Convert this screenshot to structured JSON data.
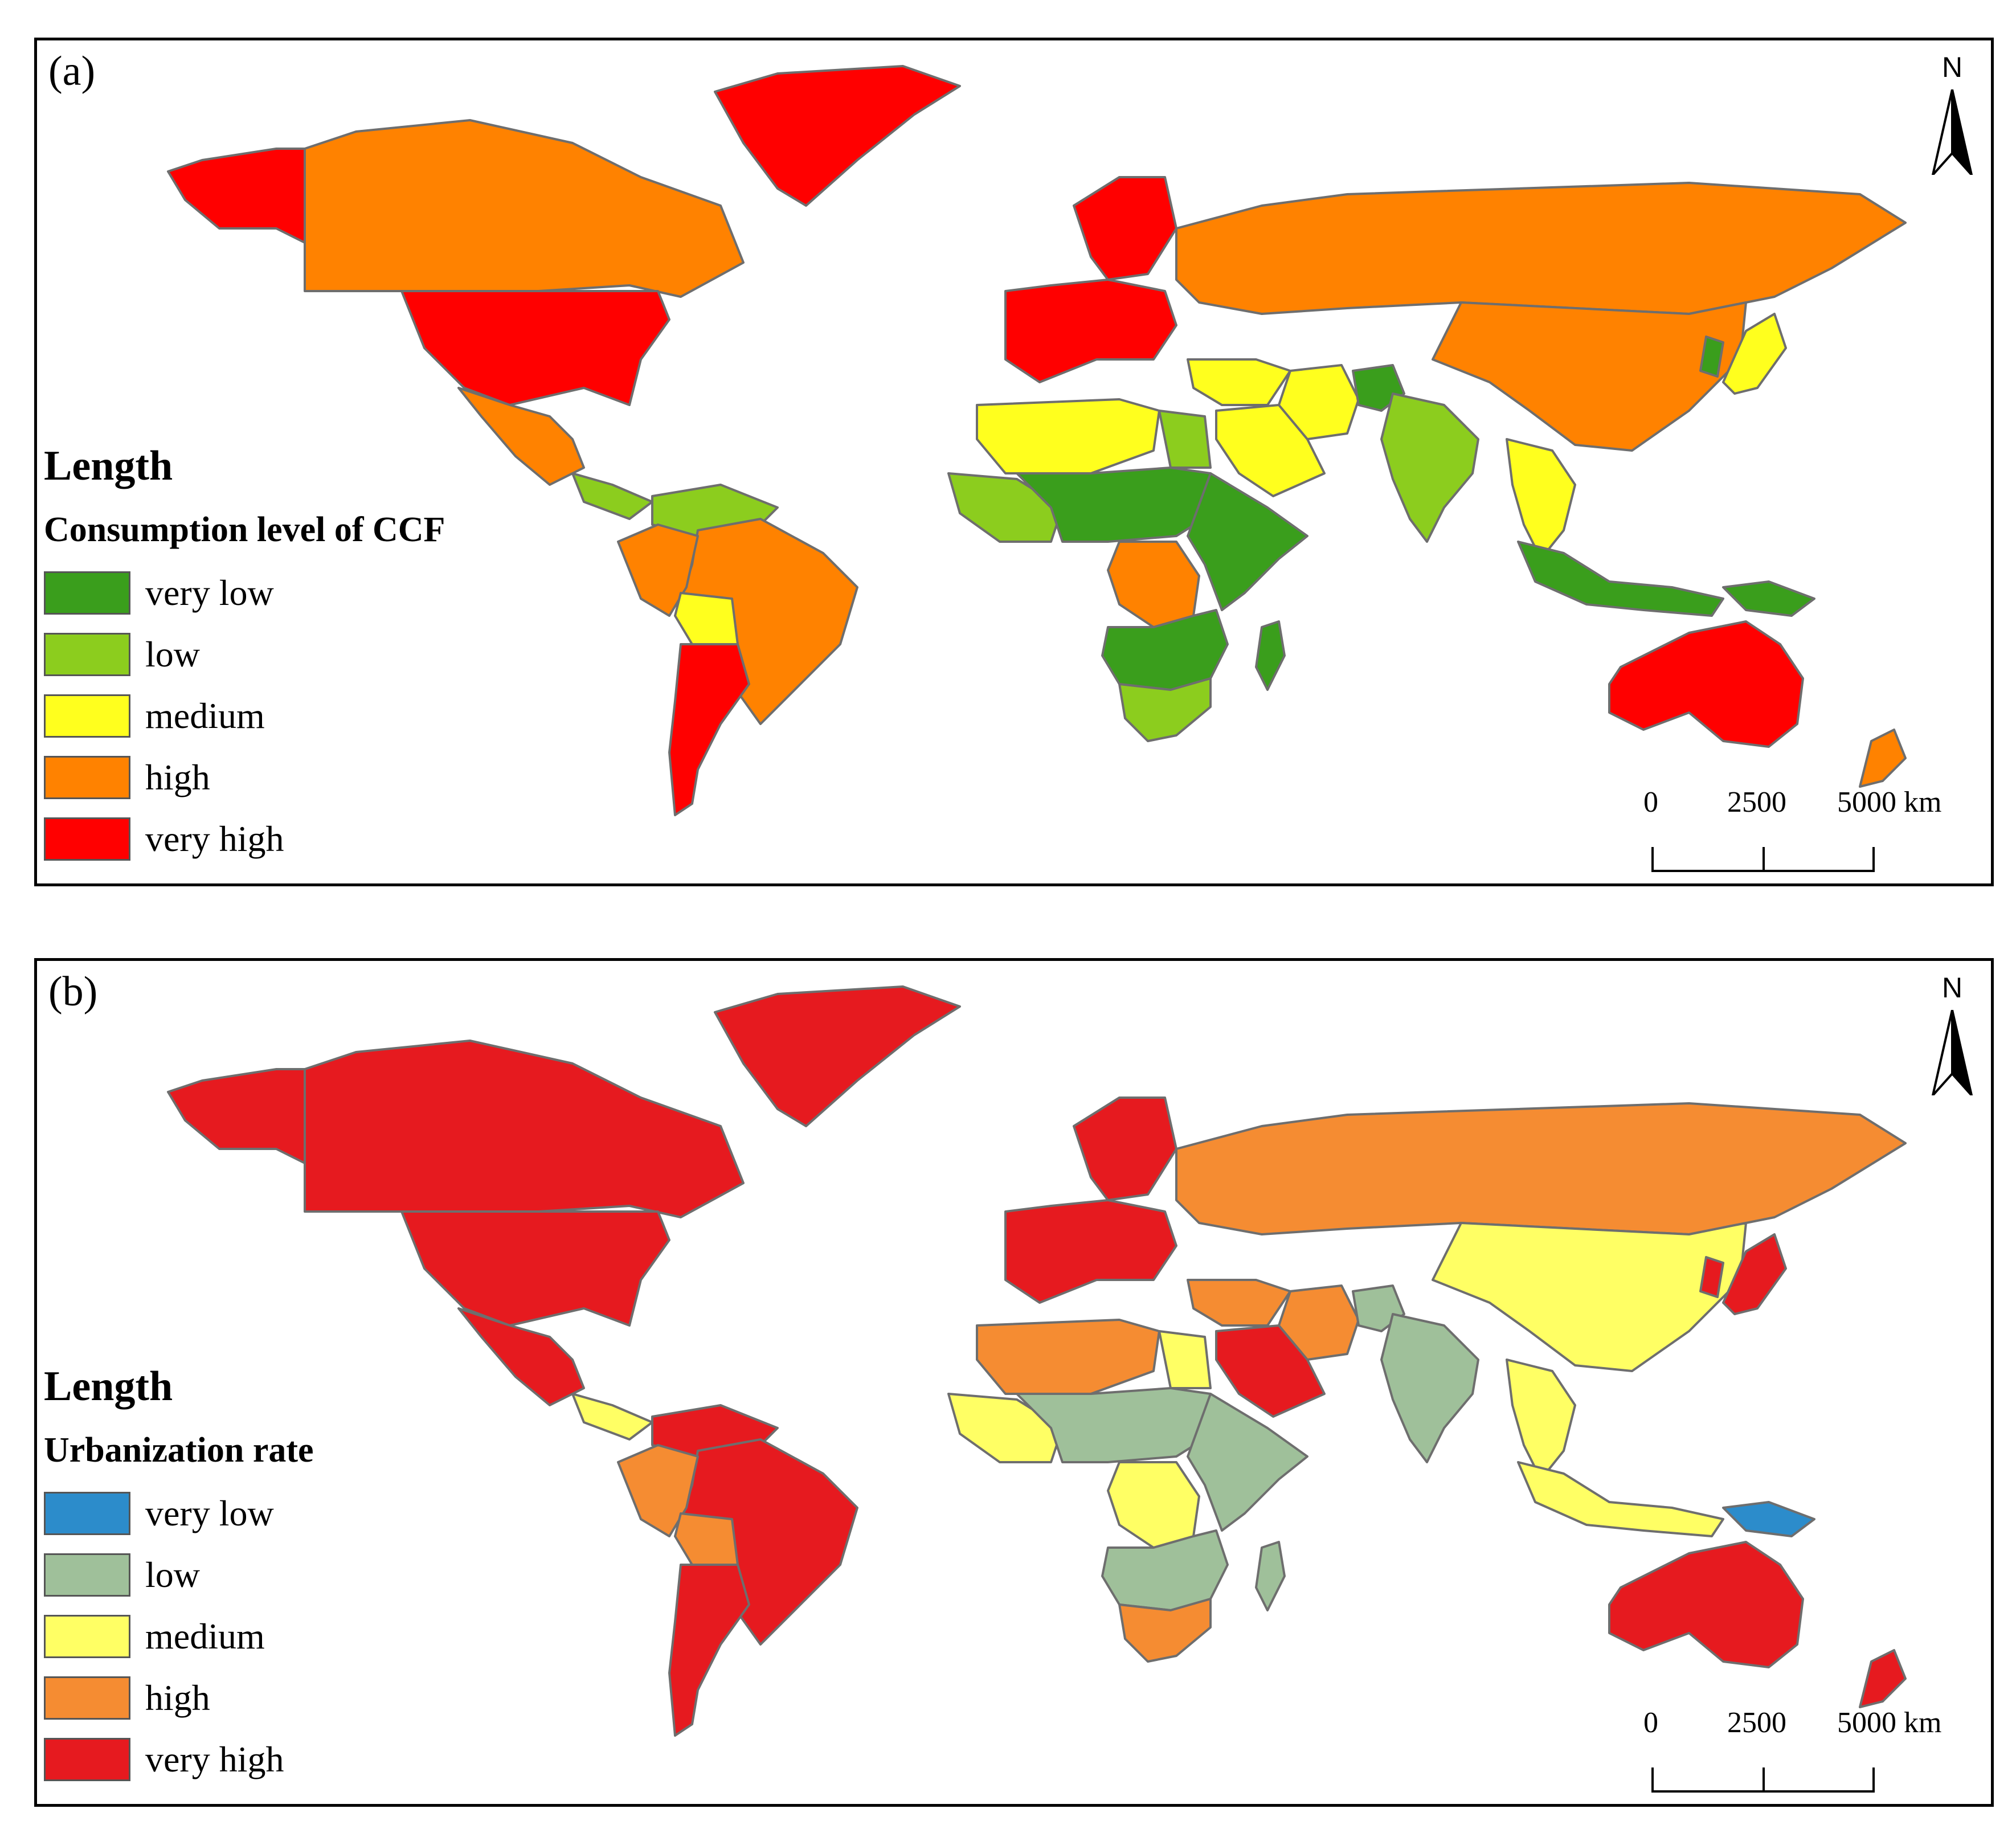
{
  "panels": [
    {
      "label": "(a)",
      "legend_heading": "Length",
      "legend_subtitle": "Consumption level of CCF",
      "legend": [
        {
          "label": "very low",
          "color": "#3a9e1c"
        },
        {
          "label": "low",
          "color": "#8ccd1e"
        },
        {
          "label": "medium",
          "color": "#ffff1e"
        },
        {
          "label": "high",
          "color": "#ff8200"
        },
        {
          "label": "very high",
          "color": "#ff0000"
        }
      ],
      "regions": [
        {
          "name": "Greenland",
          "class": "very high"
        },
        {
          "name": "Alaska",
          "class": "very high"
        },
        {
          "name": "Canada",
          "class": "high"
        },
        {
          "name": "United States",
          "class": "very high"
        },
        {
          "name": "Mexico",
          "class": "high"
        },
        {
          "name": "Central America",
          "class": "low"
        },
        {
          "name": "Northern South America",
          "class": "low"
        },
        {
          "name": "Brazil",
          "class": "high"
        },
        {
          "name": "Peru",
          "class": "high"
        },
        {
          "name": "Bolivia",
          "class": "medium"
        },
        {
          "name": "Argentina",
          "class": "very high"
        },
        {
          "name": "Scandinavia",
          "class": "very high"
        },
        {
          "name": "Western Europe",
          "class": "very high"
        },
        {
          "name": "Russia",
          "class": "high"
        },
        {
          "name": "China",
          "class": "high"
        },
        {
          "name": "Middle East",
          "class": "medium"
        },
        {
          "name": "Arabian Peninsula",
          "class": "medium"
        },
        {
          "name": "Iran",
          "class": "medium"
        },
        {
          "name": "Afghanistan",
          "class": "very low"
        },
        {
          "name": "North Africa",
          "class": "medium"
        },
        {
          "name": "Egypt",
          "class": "low"
        },
        {
          "name": "West Africa",
          "class": "low"
        },
        {
          "name": "Sahel",
          "class": "very low"
        },
        {
          "name": "Horn of Africa",
          "class": "very low"
        },
        {
          "name": "DR Congo",
          "class": "high"
        },
        {
          "name": "Southern Africa",
          "class": "very low"
        },
        {
          "name": "South Africa",
          "class": "low"
        },
        {
          "name": "Madagascar",
          "class": "very low"
        },
        {
          "name": "India",
          "class": "low"
        },
        {
          "name": "Southeast Asia",
          "class": "medium"
        },
        {
          "name": "Indonesia",
          "class": "very low"
        },
        {
          "name": "Japan",
          "class": "medium"
        },
        {
          "name": "Korea",
          "class": "very low"
        },
        {
          "name": "New Guinea",
          "class": "very low"
        },
        {
          "name": "Australia",
          "class": "very high"
        },
        {
          "name": "New Zealand",
          "class": "high"
        }
      ],
      "scale_labels": [
        "0",
        "2500",
        "5000 km"
      ],
      "north": "N"
    },
    {
      "label": "(b)",
      "legend_heading": "Length",
      "legend_subtitle": "Urbanization rate",
      "legend": [
        {
          "label": "very low",
          "color": "#2c8ccb"
        },
        {
          "label": "low",
          "color": "#9fc09a"
        },
        {
          "label": "medium",
          "color": "#ffff64"
        },
        {
          "label": "high",
          "color": "#f58c32"
        },
        {
          "label": "very high",
          "color": "#e61a1f"
        }
      ],
      "regions": [
        {
          "name": "Greenland",
          "class": "very high"
        },
        {
          "name": "Alaska",
          "class": "very high"
        },
        {
          "name": "Canada",
          "class": "very high"
        },
        {
          "name": "United States",
          "class": "very high"
        },
        {
          "name": "Mexico",
          "class": "very high"
        },
        {
          "name": "Central America",
          "class": "medium"
        },
        {
          "name": "Northern South America",
          "class": "very high"
        },
        {
          "name": "Brazil",
          "class": "very high"
        },
        {
          "name": "Peru",
          "class": "high"
        },
        {
          "name": "Bolivia",
          "class": "high"
        },
        {
          "name": "Argentina",
          "class": "very high"
        },
        {
          "name": "Scandinavia",
          "class": "very high"
        },
        {
          "name": "Western Europe",
          "class": "very high"
        },
        {
          "name": "Russia",
          "class": "high"
        },
        {
          "name": "China",
          "class": "medium"
        },
        {
          "name": "Middle East",
          "class": "high"
        },
        {
          "name": "Arabian Peninsula",
          "class": "very high"
        },
        {
          "name": "Iran",
          "class": "high"
        },
        {
          "name": "Afghanistan",
          "class": "low"
        },
        {
          "name": "North Africa",
          "class": "high"
        },
        {
          "name": "Egypt",
          "class": "medium"
        },
        {
          "name": "West Africa",
          "class": "medium"
        },
        {
          "name": "Sahel",
          "class": "low"
        },
        {
          "name": "Horn of Africa",
          "class": "low"
        },
        {
          "name": "DR Congo",
          "class": "medium"
        },
        {
          "name": "Southern Africa",
          "class": "low"
        },
        {
          "name": "South Africa",
          "class": "high"
        },
        {
          "name": "Madagascar",
          "class": "low"
        },
        {
          "name": "India",
          "class": "low"
        },
        {
          "name": "Southeast Asia",
          "class": "medium"
        },
        {
          "name": "Indonesia",
          "class": "medium"
        },
        {
          "name": "Japan",
          "class": "very high"
        },
        {
          "name": "Korea",
          "class": "very high"
        },
        {
          "name": "New Guinea",
          "class": "very low"
        },
        {
          "name": "Australia",
          "class": "very high"
        },
        {
          "name": "New Zealand",
          "class": "very high"
        }
      ],
      "scale_labels": [
        "0",
        "2500",
        "5000 km"
      ],
      "north": "N"
    }
  ]
}
